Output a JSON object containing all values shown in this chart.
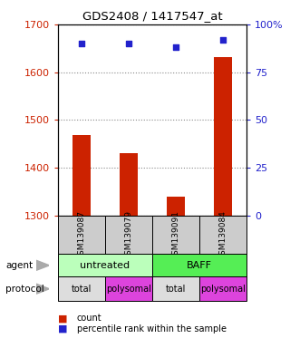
{
  "title": "GDS2408 / 1417547_at",
  "samples": [
    "GSM139087",
    "GSM139079",
    "GSM139091",
    "GSM139084"
  ],
  "bar_values": [
    1468,
    1430,
    1340,
    1632
  ],
  "scatter_values": [
    90,
    90,
    88,
    92
  ],
  "ylim_left": [
    1300,
    1700
  ],
  "ylim_right": [
    0,
    100
  ],
  "yticks_left": [
    1300,
    1400,
    1500,
    1600,
    1700
  ],
  "yticks_right": [
    0,
    25,
    50,
    75,
    100
  ],
  "ytick_labels_right": [
    "0",
    "25",
    "50",
    "75",
    "100%"
  ],
  "bar_color": "#cc2200",
  "scatter_color": "#2222cc",
  "bar_bottom": 1300,
  "agent_labels": [
    "untreated",
    "BAFF"
  ],
  "agent_colors": [
    "#bbffbb",
    "#55ee55"
  ],
  "protocol_labels": [
    "total",
    "polysomal",
    "total",
    "polysomal"
  ],
  "protocol_colors": [
    "#dddddd",
    "#dd44dd",
    "#dddddd",
    "#dd44dd"
  ],
  "sample_cell_color": "#cccccc",
  "legend_count_color": "#cc2200",
  "legend_pct_color": "#2222cc",
  "bg_color": "#ffffff",
  "grid_color": "#888888",
  "title_color": "#000000",
  "left_tick_color": "#cc2200",
  "right_tick_color": "#2222cc"
}
